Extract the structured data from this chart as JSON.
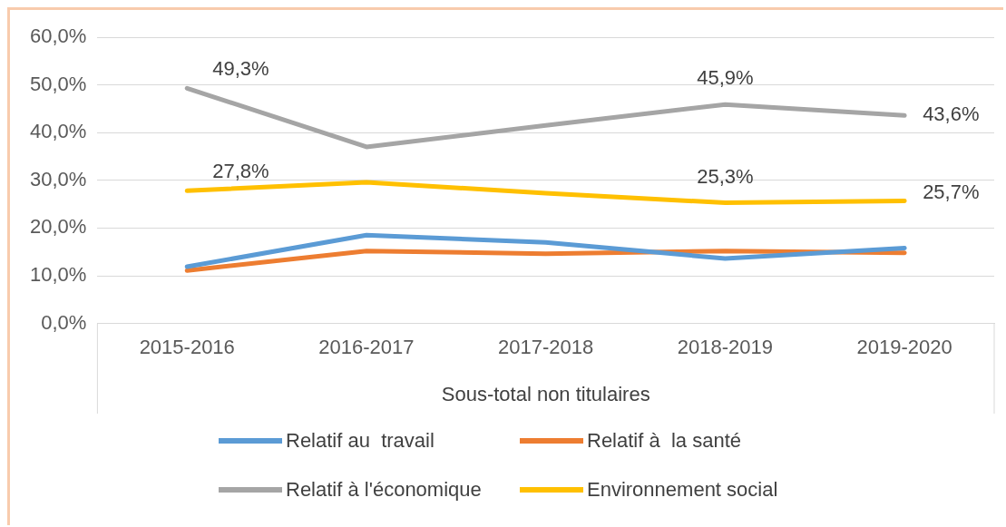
{
  "chart_data": {
    "type": "line",
    "xlabel": "Sous-total non titulaires",
    "categories": [
      "2015-2016",
      "2016-2017",
      "2017-2018",
      "2018-2019",
      "2019-2020"
    ],
    "series": [
      {
        "name": "Relatif au  travail",
        "color": "#5b9bd5",
        "values": [
          11.9,
          18.5,
          17.0,
          13.6,
          15.8
        ]
      },
      {
        "name": "Relatif à  la santé",
        "color": "#ed7d31",
        "values": [
          11.1,
          15.2,
          14.6,
          15.2,
          14.8
        ]
      },
      {
        "name": "Relatif à l'économique",
        "color": "#a5a5a5",
        "values": [
          49.3,
          37.0,
          41.5,
          45.9,
          43.6
        ],
        "value_labels": [
          "49,3%",
          null,
          null,
          "45,9%",
          "43,6%"
        ]
      },
      {
        "name": "Environnement social",
        "color": "#ffc000",
        "values": [
          27.8,
          29.6,
          27.3,
          25.3,
          25.7
        ],
        "value_labels": [
          "27,8%",
          null,
          null,
          "25,3%",
          "25,7%"
        ]
      }
    ],
    "ylim": [
      0,
      60
    ],
    "yticks": [
      {
        "value": 0,
        "label": "0,0%"
      },
      {
        "value": 10,
        "label": "10,0%"
      },
      {
        "value": 20,
        "label": "20,0%"
      },
      {
        "value": 30,
        "label": "30,0%"
      },
      {
        "value": 40,
        "label": "40,0%"
      },
      {
        "value": 50,
        "label": "50,0%"
      },
      {
        "value": 60,
        "label": "60,0%"
      }
    ],
    "grid": "y",
    "legend": "bottom",
    "marker": "none",
    "line_style": "solid"
  }
}
